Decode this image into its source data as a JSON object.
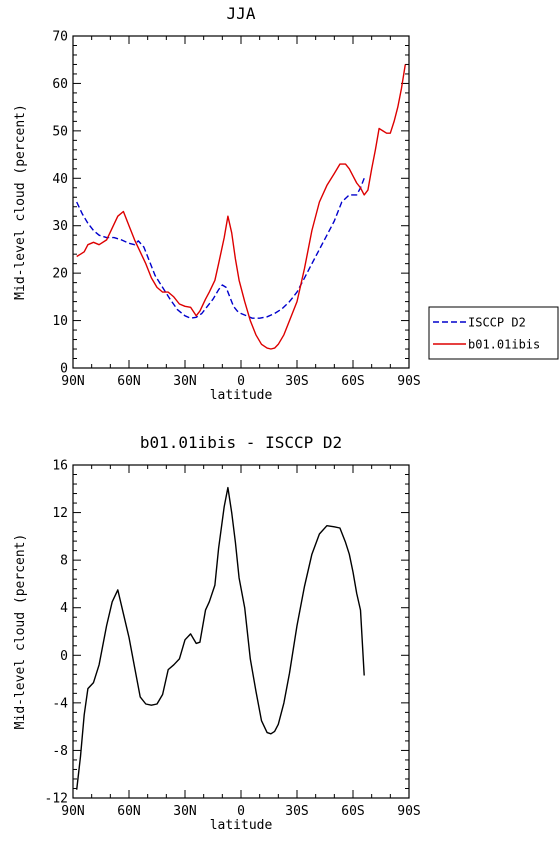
{
  "chart_data": [
    {
      "type": "line",
      "title": "JJA",
      "xlabel": "latitude",
      "ylabel": "Mid-level cloud (percent)",
      "xlim": [
        90,
        -90
      ],
      "ylim": [
        0,
        70
      ],
      "x_ticks": [
        90,
        60,
        30,
        0,
        -30,
        -60,
        -90
      ],
      "x_tick_labels": [
        "90N",
        "60N",
        "30N",
        "0",
        "30S",
        "60S",
        "90S"
      ],
      "y_ticks": [
        0,
        10,
        20,
        30,
        40,
        50,
        60,
        70
      ],
      "y_tick_labels": [
        "0",
        "10",
        "20",
        "30",
        "40",
        "50",
        "60",
        "70"
      ],
      "grid": false,
      "legend_position": "outside-right",
      "series": [
        {
          "name": "ISCCP D2",
          "color": "#0000cc",
          "dash": "dashed",
          "x": [
            88,
            85,
            82,
            79,
            76,
            72,
            68,
            64,
            60,
            57,
            55,
            52,
            49,
            46,
            42,
            38,
            34,
            30,
            27,
            24,
            21,
            18,
            15,
            12,
            10,
            8,
            6,
            4,
            2,
            0,
            -3,
            -6,
            -10,
            -14,
            -18,
            -22,
            -26,
            -30,
            -34,
            -38,
            -42,
            -46,
            -50,
            -54,
            -58,
            -62,
            -64,
            -66
          ],
          "y": [
            35,
            32.5,
            30.5,
            29,
            28,
            27.5,
            27.5,
            27,
            26.3,
            26,
            26.8,
            25.5,
            22.5,
            19.5,
            17,
            14.5,
            12.3,
            11,
            10.5,
            10.7,
            11.5,
            13,
            14.5,
            16.5,
            17.5,
            17,
            15,
            13,
            12,
            11.5,
            11,
            10.5,
            10.5,
            10.8,
            11.5,
            12.5,
            14,
            16,
            19,
            22,
            25,
            28,
            31,
            35,
            36.5,
            36.5,
            38,
            40
          ]
        },
        {
          "name": "b01.01ibis",
          "color": "#dd0000",
          "dash": "solid",
          "x": [
            88,
            86,
            84,
            82,
            79,
            76,
            72,
            69,
            66,
            63,
            60,
            57,
            54,
            51,
            48,
            45,
            42,
            39,
            36,
            33,
            30,
            27,
            24,
            22,
            19,
            17,
            14,
            12,
            9,
            7,
            5,
            3,
            1,
            -2,
            -5,
            -8,
            -11,
            -14,
            -16,
            -18,
            -20,
            -23,
            -26,
            -30,
            -34,
            -38,
            -42,
            -46,
            -50,
            -53,
            -56,
            -58,
            -60,
            -62,
            -64,
            -66,
            -68,
            -70,
            -72,
            -74,
            -76,
            -78,
            -80,
            -82,
            -84,
            -86,
            -88
          ],
          "y": [
            23.5,
            24,
            24.5,
            26,
            26.5,
            26,
            27,
            29.5,
            32,
            33,
            30,
            27,
            24.5,
            22,
            19,
            17,
            16,
            16,
            15,
            13.5,
            13,
            12.8,
            11,
            12,
            14.5,
            16,
            18.5,
            22,
            27.5,
            32,
            28.5,
            23,
            18.5,
            14,
            10,
            7,
            5,
            4.2,
            4,
            4.2,
            5,
            7,
            10,
            14,
            21,
            29,
            35,
            38.5,
            41,
            43,
            43,
            42,
            40.5,
            39,
            38,
            36.5,
            37.5,
            42,
            46,
            50.5,
            50,
            49.5,
            49.5,
            52,
            55,
            59,
            64
          ]
        }
      ]
    },
    {
      "type": "line",
      "title": "b01.01ibis - ISCCP D2",
      "xlabel": "latitude",
      "ylabel": "Mid-level cloud (percent)",
      "xlim": [
        90,
        -90
      ],
      "ylim": [
        -12,
        16
      ],
      "x_ticks": [
        90,
        60,
        30,
        0,
        -30,
        -60,
        -90
      ],
      "x_tick_labels": [
        "90N",
        "60N",
        "30N",
        "0",
        "30S",
        "60S",
        "90S"
      ],
      "y_ticks": [
        -12,
        -8,
        -4,
        0,
        4,
        8,
        12,
        16
      ],
      "y_tick_labels": [
        "-12",
        "-8",
        "-4",
        "0",
        "4",
        "8",
        "12",
        "16"
      ],
      "grid": false,
      "series": [
        {
          "color": "#000000",
          "dash": "solid",
          "x": [
            88,
            86,
            84,
            82,
            79,
            76,
            72,
            69,
            66,
            63,
            60,
            57,
            54,
            51,
            48,
            45,
            42,
            39,
            36,
            33,
            30,
            27,
            24,
            22,
            19,
            17,
            14,
            12,
            9,
            7,
            5,
            3,
            1,
            -2,
            -5,
            -8,
            -11,
            -14,
            -16,
            -18,
            -20,
            -23,
            -26,
            -30,
            -34,
            -38,
            -42,
            -46,
            -50,
            -53,
            -56,
            -58,
            -60,
            -62,
            -64,
            -66
          ],
          "y": [
            -11.3,
            -8.5,
            -5,
            -2.8,
            -2.3,
            -0.8,
            2.5,
            4.5,
            5.5,
            3.5,
            1.5,
            -1,
            -3.5,
            -4.1,
            -4.2,
            -4.1,
            -3.3,
            -1.2,
            -0.8,
            -0.3,
            1.3,
            1.8,
            1,
            1.1,
            3.8,
            4.5,
            5.9,
            9,
            12.5,
            14.1,
            12,
            9.5,
            6.5,
            4,
            -0.3,
            -3,
            -5.5,
            -6.5,
            -6.6,
            -6.4,
            -5.8,
            -4,
            -1.5,
            2.5,
            5.8,
            8.5,
            10.2,
            10.9,
            10.8,
            10.7,
            9.5,
            8.5,
            7,
            5.2,
            3.8,
            -1.7
          ]
        }
      ]
    }
  ]
}
